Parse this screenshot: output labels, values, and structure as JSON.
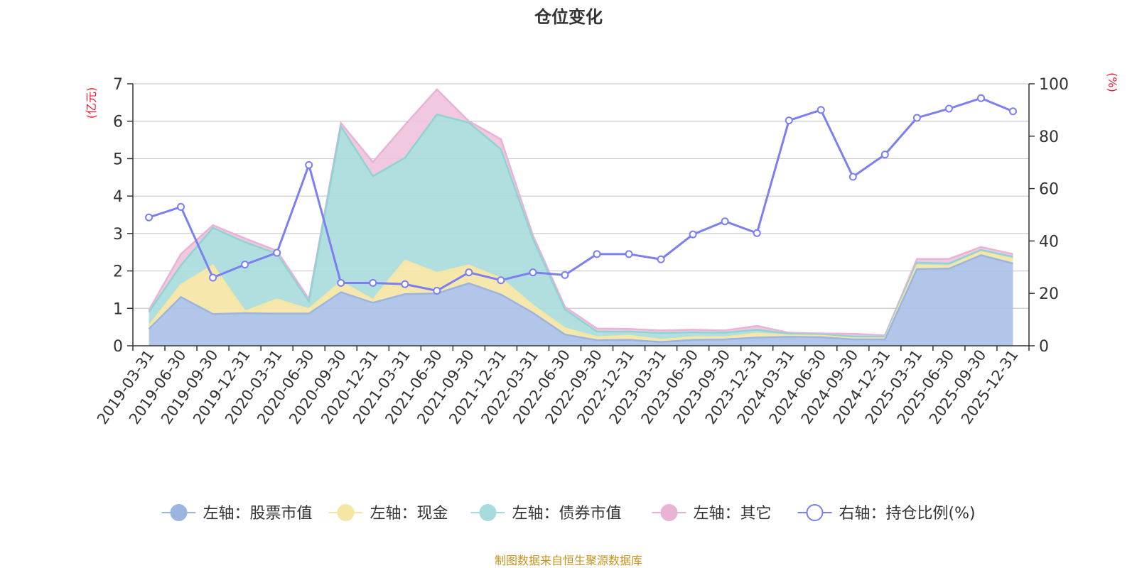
{
  "colors": {
    "stock": "#a9c0e6",
    "stock_line": "#9cb5e0",
    "cash": "#f5e6a4",
    "cash_line": "#f5e6a4",
    "bond": "#a8dcdc",
    "bond_line": "#8fd3d3",
    "other": "#eec3dd",
    "other_line": "#e8b3d5",
    "ratio": "#7b7ff0",
    "unit": "#e8192c",
    "source": "#c6941e",
    "grid": "#cccccc",
    "axis": "#333333"
  },
  "chart_data": {
    "type": "area",
    "title": "仓位变化",
    "left_axis": {
      "unit": "(亿元)",
      "ylim": [
        0,
        7
      ],
      "ticks": [
        "0",
        "1",
        "2",
        "3",
        "4",
        "5",
        "6",
        "7"
      ]
    },
    "right_axis": {
      "unit": "(%)",
      "ylim": [
        0,
        100
      ],
      "ticks": [
        "0",
        "20",
        "40",
        "60",
        "80",
        "100"
      ]
    },
    "categories": [
      "2019-03-31",
      "2019-06-30",
      "2019-09-30",
      "2019-12-31",
      "2020-03-31",
      "2020-06-30",
      "2020-09-30",
      "2020-12-31",
      "2021-03-31",
      "2021-06-30",
      "2021-09-30",
      "2021-12-31",
      "2022-03-31",
      "2022-06-30",
      "2022-09-30",
      "2022-12-31",
      "2023-03-31",
      "2023-06-30",
      "2023-09-30",
      "2023-12-31",
      "2024-03-31",
      "2024-06-30",
      "2024-09-30",
      "2024-12-31",
      "2025-03-31",
      "2025-06-30",
      "2025-09-30",
      "2025-12-31"
    ],
    "stacked_series": [
      {
        "name": "左轴：股票市值",
        "axis": "left",
        "values": [
          0.45,
          1.3,
          0.85,
          0.87,
          0.86,
          0.86,
          1.43,
          1.15,
          1.38,
          1.4,
          1.67,
          1.37,
          0.88,
          0.3,
          0.15,
          0.16,
          0.1,
          0.16,
          0.17,
          0.22,
          0.24,
          0.23,
          0.17,
          0.17,
          2.05,
          2.06,
          2.42,
          2.2
        ]
      },
      {
        "name": "左轴：现金",
        "axis": "left",
        "values": [
          0.08,
          0.33,
          1.3,
          0.05,
          0.38,
          0.12,
          0.28,
          0.08,
          0.9,
          0.55,
          0.48,
          0.43,
          0.2,
          0.17,
          0.08,
          0.11,
          0.06,
          0.07,
          0.06,
          0.11,
          0.04,
          0.04,
          0.03,
          0.03,
          0.1,
          0.07,
          0.09,
          0.12
        ]
      },
      {
        "name": "左轴：债券市值",
        "axis": "left",
        "values": [
          0.37,
          0.52,
          1.0,
          1.85,
          1.22,
          0.2,
          4.15,
          3.3,
          2.74,
          4.23,
          3.81,
          3.45,
          1.77,
          0.5,
          0.15,
          0.11,
          0.18,
          0.13,
          0.12,
          0.1,
          0.04,
          0.03,
          0.05,
          0.04,
          0.07,
          0.07,
          0.05,
          0.06
        ]
      },
      {
        "name": "左轴：其它",
        "axis": "left",
        "values": [
          0.05,
          0.3,
          0.07,
          0.1,
          0.08,
          0.07,
          0.09,
          0.38,
          0.88,
          0.67,
          0.04,
          0.27,
          0.1,
          0.07,
          0.08,
          0.07,
          0.07,
          0.07,
          0.06,
          0.1,
          0.03,
          0.03,
          0.07,
          0.04,
          0.1,
          0.12,
          0.08,
          0.07
        ]
      }
    ],
    "line_series": {
      "name": "右轴：持仓比例(%)",
      "axis": "right",
      "values": [
        49,
        53,
        26,
        31,
        35.5,
        69,
        24,
        24,
        23.5,
        21,
        28,
        25,
        28,
        27,
        35,
        35,
        33,
        42.5,
        47.5,
        43,
        86,
        90,
        64.5,
        73,
        87,
        90.5,
        94.5,
        89.5
      ]
    },
    "legend": [
      "左轴：股票市值",
      "左轴：现金",
      "左轴：债券市值",
      "左轴：其它",
      "右轴：持仓比例(%)"
    ],
    "legend_position": "bottom",
    "grid": true
  },
  "footer": {
    "source": "制图数据来自恒生聚源数据库"
  }
}
